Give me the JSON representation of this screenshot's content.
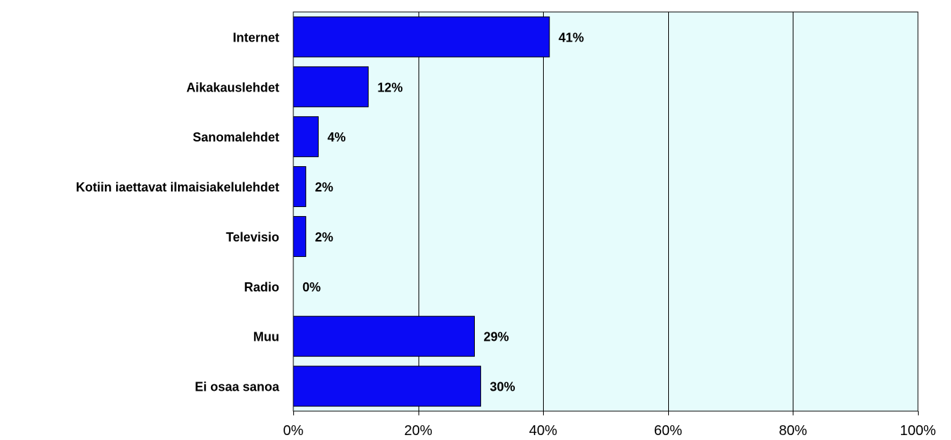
{
  "chart_data": {
    "type": "bar",
    "orientation": "horizontal",
    "categories": [
      "Internet",
      "Aikakauslehdet",
      "Sanomalehdet",
      "Kotiin iaettavat ilmaisiakelulehdet",
      "Televisio",
      "Radio",
      "Muu",
      "Ei osaa sanoa"
    ],
    "values": [
      41,
      12,
      4,
      2,
      2,
      0,
      29,
      30
    ],
    "value_labels": [
      "41%",
      "12%",
      "4%",
      "2%",
      "2%",
      "0%",
      "29%",
      "30%"
    ],
    "xlim": [
      0,
      100
    ],
    "x_ticks": [
      0,
      20,
      40,
      60,
      80,
      100
    ],
    "x_tick_labels": [
      "0%",
      "20%",
      "40%",
      "60%",
      "80%",
      "100%"
    ],
    "grid": true,
    "colors": {
      "bar": "#0A0AF5",
      "plot_background": "#E6FCFC",
      "gridline": "#000000"
    }
  }
}
